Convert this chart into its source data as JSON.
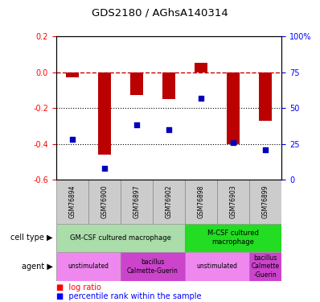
{
  "title": "GDS2180 / AGhsA140314",
  "samples": [
    "GSM76894",
    "GSM76900",
    "GSM76897",
    "GSM76902",
    "GSM76898",
    "GSM76903",
    "GSM76899"
  ],
  "log_ratio": [
    -0.03,
    -0.46,
    -0.13,
    -0.15,
    0.05,
    -0.4,
    -0.27
  ],
  "percentile": [
    28,
    8,
    38,
    35,
    57,
    26,
    21
  ],
  "ylim_left": [
    -0.6,
    0.2
  ],
  "ylim_right": [
    0,
    100
  ],
  "yticks_left": [
    0.2,
    0.0,
    -0.2,
    -0.4,
    -0.6
  ],
  "yticks_right": [
    100,
    75,
    50,
    25,
    0
  ],
  "bar_color": "#bb0000",
  "dot_color": "#0000bb",
  "dashed_color": "#cc0000",
  "cell_type_row": [
    {
      "label": "GM-CSF cultured macrophage",
      "color": "#aaddaa",
      "span": [
        0,
        4
      ]
    },
    {
      "label": "M-CSF cultured\nmacrophage",
      "color": "#22dd22",
      "span": [
        4,
        7
      ]
    }
  ],
  "agent_row": [
    {
      "label": "unstimulated",
      "color": "#ee88ee",
      "span": [
        0,
        2
      ]
    },
    {
      "label": "bacillus\nCalmette-Guerin",
      "color": "#cc44cc",
      "span": [
        2,
        4
      ]
    },
    {
      "label": "unstimulated",
      "color": "#ee88ee",
      "span": [
        4,
        6
      ]
    },
    {
      "label": "bacillus\nCalmette\n-Guerin",
      "color": "#cc44cc",
      "span": [
        6,
        7
      ]
    }
  ],
  "sample_bg_color": "#cccccc",
  "left_label_cell_type": "cell type",
  "left_label_agent": "agent",
  "legend_red": "log ratio",
  "legend_blue": "percentile rank within the sample"
}
